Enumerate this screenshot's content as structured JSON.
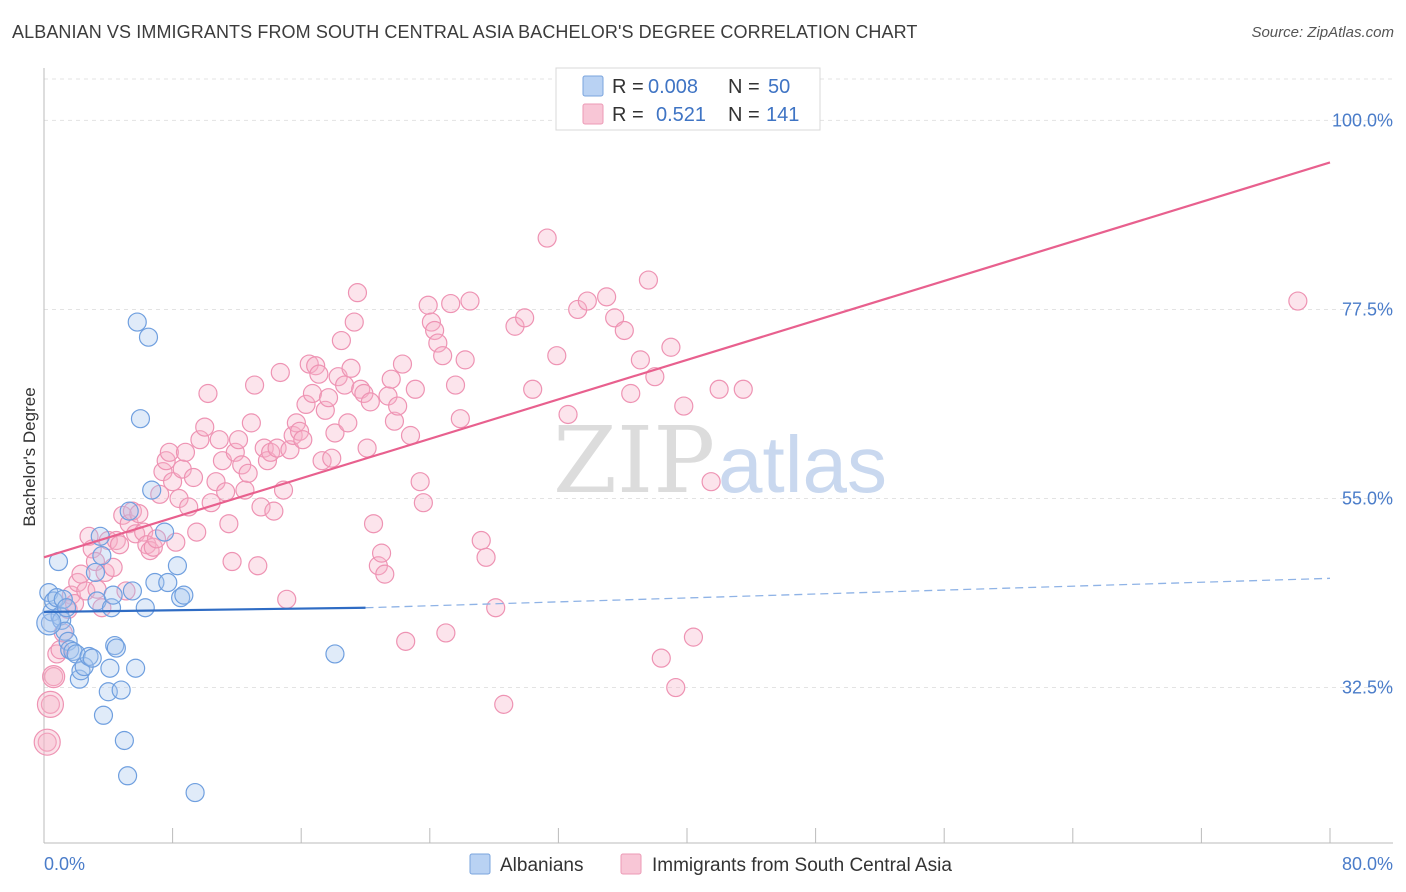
{
  "title": "ALBANIAN VS IMMIGRANTS FROM SOUTH CENTRAL ASIA BACHELOR'S DEGREE CORRELATION CHART",
  "source": "Source: ZipAtlas.com",
  "watermark": {
    "zip": "ZIP",
    "atlas": "atlas"
  },
  "chart_data": {
    "type": "scatter",
    "ylabel": "Bachelor's Degree",
    "xlabel": "",
    "xlim": [
      0,
      80
    ],
    "ylim": [
      14,
      106
    ],
    "x_tick_labels": {
      "min": "0.0%",
      "max": "80.0%"
    },
    "y_ticks": [
      {
        "value": 100,
        "label": "100.0%"
      },
      {
        "value": 77.5,
        "label": "77.5%"
      },
      {
        "value": 55,
        "label": "55.0%"
      },
      {
        "value": 32.5,
        "label": "32.5%"
      }
    ],
    "legend": {
      "rows": [
        {
          "r_label": "R =",
          "r_value": "0.008",
          "n_label": "N =",
          "n_value": "50"
        },
        {
          "r_label": "R =",
          "r_value": "0.521",
          "n_label": "N =",
          "n_value": "141"
        }
      ]
    },
    "series": [
      {
        "name": "Albanians",
        "color": "#6fa0e0",
        "line_color": "#2f6cc4",
        "trend": {
          "x0": 0,
          "y0": 41.5,
          "x1": 20,
          "y1": 42.0,
          "dashed_to": 80,
          "dashed_y": 45.5
        },
        "points": [
          [
            0.3,
            43.8
          ],
          [
            0.4,
            40.2
          ],
          [
            0.5,
            41.5
          ],
          [
            0.6,
            42.8
          ],
          [
            0.8,
            43.2
          ],
          [
            0.9,
            47.5
          ],
          [
            1.0,
            41.0
          ],
          [
            1.1,
            40.5
          ],
          [
            1.2,
            43.0
          ],
          [
            1.3,
            39.2
          ],
          [
            1.4,
            42.0
          ],
          [
            1.5,
            38.0
          ],
          [
            1.6,
            37.0
          ],
          [
            1.8,
            36.8
          ],
          [
            2.0,
            36.5
          ],
          [
            2.2,
            33.5
          ],
          [
            2.3,
            34.5
          ],
          [
            2.5,
            35.0
          ],
          [
            2.8,
            36.2
          ],
          [
            3.0,
            36.0
          ],
          [
            3.2,
            46.2
          ],
          [
            3.3,
            42.8
          ],
          [
            3.5,
            50.5
          ],
          [
            3.6,
            48.2
          ],
          [
            3.7,
            29.2
          ],
          [
            4.0,
            32.0
          ],
          [
            4.1,
            34.8
          ],
          [
            4.2,
            42.0
          ],
          [
            4.3,
            43.5
          ],
          [
            4.4,
            37.5
          ],
          [
            4.5,
            37.2
          ],
          [
            4.8,
            32.2
          ],
          [
            5.0,
            26.2
          ],
          [
            5.2,
            22.0
          ],
          [
            5.3,
            53.5
          ],
          [
            5.5,
            44.0
          ],
          [
            5.7,
            34.8
          ],
          [
            5.8,
            76.0
          ],
          [
            6.0,
            64.5
          ],
          [
            6.3,
            42.0
          ],
          [
            6.5,
            74.2
          ],
          [
            6.7,
            56.0
          ],
          [
            6.9,
            45.0
          ],
          [
            7.5,
            51.0
          ],
          [
            7.7,
            45.0
          ],
          [
            8.3,
            47.0
          ],
          [
            8.5,
            43.2
          ],
          [
            8.7,
            43.5
          ],
          [
            9.4,
            20.0
          ],
          [
            18.1,
            36.5
          ]
        ]
      },
      {
        "name": "Immigrants from South Central Asia",
        "color": "#f09ab8",
        "line_color": "#e8608e",
        "trend": {
          "x0": 0,
          "y0": 48.0,
          "x1": 80,
          "y1": 95.0
        },
        "points": [
          [
            0.2,
            26.0
          ],
          [
            0.4,
            30.5
          ],
          [
            0.6,
            33.8
          ],
          [
            0.8,
            36.5
          ],
          [
            1.0,
            37.0
          ],
          [
            1.2,
            39.0
          ],
          [
            1.5,
            41.8
          ],
          [
            1.7,
            43.5
          ],
          [
            1.9,
            42.5
          ],
          [
            2.1,
            45.0
          ],
          [
            2.3,
            46.0
          ],
          [
            2.6,
            44.0
          ],
          [
            2.8,
            50.5
          ],
          [
            3.0,
            49.0
          ],
          [
            3.2,
            47.5
          ],
          [
            3.3,
            44.2
          ],
          [
            3.6,
            42.0
          ],
          [
            3.8,
            46.2
          ],
          [
            4.0,
            50.0
          ],
          [
            4.3,
            46.8
          ],
          [
            4.5,
            50.0
          ],
          [
            4.7,
            49.5
          ],
          [
            4.9,
            53.0
          ],
          [
            5.1,
            44.0
          ],
          [
            5.3,
            52.0
          ],
          [
            5.5,
            53.5
          ],
          [
            5.7,
            50.8
          ],
          [
            5.9,
            53.2
          ],
          [
            6.2,
            51.0
          ],
          [
            6.4,
            49.5
          ],
          [
            6.6,
            48.8
          ],
          [
            6.8,
            49.2
          ],
          [
            7.0,
            50.2
          ],
          [
            7.2,
            55.5
          ],
          [
            7.4,
            58.2
          ],
          [
            7.6,
            59.5
          ],
          [
            7.8,
            60.5
          ],
          [
            8.0,
            57.0
          ],
          [
            8.2,
            49.8
          ],
          [
            8.4,
            55.0
          ],
          [
            8.6,
            58.5
          ],
          [
            8.8,
            60.5
          ],
          [
            9.0,
            54.0
          ],
          [
            9.3,
            57.5
          ],
          [
            9.5,
            51.0
          ],
          [
            9.7,
            62.0
          ],
          [
            10.0,
            63.5
          ],
          [
            10.2,
            67.5
          ],
          [
            10.4,
            54.5
          ],
          [
            10.7,
            57.0
          ],
          [
            10.9,
            62.0
          ],
          [
            11.1,
            59.5
          ],
          [
            11.3,
            55.8
          ],
          [
            11.5,
            52.0
          ],
          [
            11.7,
            47.5
          ],
          [
            11.9,
            60.5
          ],
          [
            12.1,
            62.0
          ],
          [
            12.3,
            59.0
          ],
          [
            12.5,
            56.0
          ],
          [
            12.7,
            58.0
          ],
          [
            12.9,
            64.0
          ],
          [
            13.1,
            68.5
          ],
          [
            13.3,
            47.0
          ],
          [
            13.5,
            54.0
          ],
          [
            13.7,
            61.0
          ],
          [
            13.9,
            59.5
          ],
          [
            14.1,
            60.5
          ],
          [
            14.3,
            53.5
          ],
          [
            14.5,
            61.0
          ],
          [
            14.7,
            70.0
          ],
          [
            14.9,
            56.0
          ],
          [
            15.1,
            43.0
          ],
          [
            15.3,
            60.8
          ],
          [
            15.5,
            62.5
          ],
          [
            15.7,
            64.0
          ],
          [
            15.9,
            63.0
          ],
          [
            16.1,
            62.0
          ],
          [
            16.3,
            66.2
          ],
          [
            16.5,
            71.0
          ],
          [
            16.7,
            67.5
          ],
          [
            16.9,
            70.8
          ],
          [
            17.1,
            69.8
          ],
          [
            17.3,
            59.5
          ],
          [
            17.5,
            65.5
          ],
          [
            17.7,
            67.0
          ],
          [
            17.9,
            59.8
          ],
          [
            18.1,
            62.8
          ],
          [
            18.3,
            69.5
          ],
          [
            18.5,
            73.8
          ],
          [
            18.7,
            68.5
          ],
          [
            18.9,
            64.0
          ],
          [
            19.1,
            70.5
          ],
          [
            19.3,
            76.0
          ],
          [
            19.5,
            79.5
          ],
          [
            19.7,
            68.0
          ],
          [
            19.9,
            67.5
          ],
          [
            20.1,
            61.0
          ],
          [
            20.3,
            66.5
          ],
          [
            20.5,
            52.0
          ],
          [
            20.8,
            47.0
          ],
          [
            21.0,
            48.5
          ],
          [
            21.2,
            46.0
          ],
          [
            21.4,
            67.2
          ],
          [
            21.6,
            69.2
          ],
          [
            21.8,
            64.2
          ],
          [
            22.0,
            66.0
          ],
          [
            22.3,
            71.0
          ],
          [
            22.5,
            38.0
          ],
          [
            22.8,
            62.5
          ],
          [
            23.1,
            68.0
          ],
          [
            23.4,
            57.0
          ],
          [
            23.6,
            54.5
          ],
          [
            23.9,
            78.0
          ],
          [
            24.1,
            76.0
          ],
          [
            24.3,
            75.0
          ],
          [
            24.5,
            73.5
          ],
          [
            24.8,
            72.0
          ],
          [
            25.0,
            39.0
          ],
          [
            25.3,
            78.2
          ],
          [
            25.6,
            68.5
          ],
          [
            25.9,
            64.5
          ],
          [
            26.2,
            71.5
          ],
          [
            26.5,
            78.5
          ],
          [
            27.2,
            50.0
          ],
          [
            27.5,
            48.0
          ],
          [
            28.1,
            42.0
          ],
          [
            28.6,
            30.5
          ],
          [
            29.3,
            75.5
          ],
          [
            29.9,
            76.5
          ],
          [
            30.4,
            68.0
          ],
          [
            31.3,
            86.0
          ],
          [
            31.9,
            72.0
          ],
          [
            32.6,
            65.0
          ],
          [
            33.2,
            77.5
          ],
          [
            33.8,
            78.5
          ],
          [
            35.0,
            79.0
          ],
          [
            35.5,
            76.5
          ],
          [
            36.1,
            75.0
          ],
          [
            36.5,
            67.5
          ],
          [
            37.1,
            71.5
          ],
          [
            37.6,
            81.0
          ],
          [
            38.0,
            69.5
          ],
          [
            38.4,
            36.0
          ],
          [
            39.3,
            32.5
          ],
          [
            39.8,
            66.0
          ],
          [
            40.4,
            38.5
          ],
          [
            41.5,
            57.0
          ],
          [
            39.0,
            73.0
          ],
          [
            42.0,
            68.0
          ],
          [
            43.5,
            68.0
          ],
          [
            78.0,
            78.5
          ]
        ]
      }
    ],
    "bottom_legend": [
      "Albanians",
      "Immigrants from South Central Asia"
    ]
  }
}
